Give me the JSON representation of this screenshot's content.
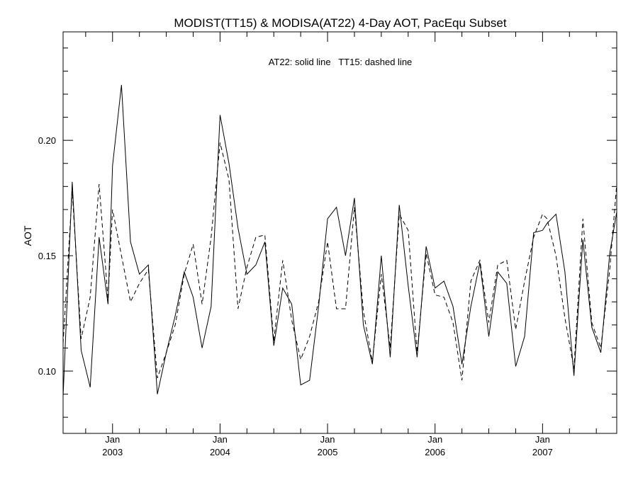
{
  "chart_data": {
    "type": "line",
    "title": "MODIST(TT15) & MODISA(AT22) 4-Day AOT, PacEqu Subset",
    "ylabel": "AOT",
    "xlabel": "",
    "annotation": "AT22: solid line   TT15: dashed line",
    "xlim": [
      2002.54,
      2007.69
    ],
    "ylim": [
      0.073,
      0.247
    ],
    "yticks": [
      {
        "value": 0.1,
        "label": "0.10"
      },
      {
        "value": 0.15,
        "label": "0.15"
      },
      {
        "value": 0.2,
        "label": "0.20"
      }
    ],
    "xticks": [
      {
        "value": 2003.0,
        "month": "Jan",
        "year": "2003"
      },
      {
        "value": 2004.0,
        "month": "Jan",
        "year": "2004"
      },
      {
        "value": 2005.0,
        "month": "Jan",
        "year": "2005"
      },
      {
        "value": 2006.0,
        "month": "Jan",
        "year": "2006"
      },
      {
        "value": 2007.0,
        "month": "Jan",
        "year": "2007"
      }
    ],
    "grid": false,
    "series": [
      {
        "name": "AT22",
        "style": "solid",
        "color": "#000000",
        "x": [
          2002.54,
          2002.625,
          2002.708,
          2002.792,
          2002.875,
          2002.958,
          2003.0,
          2003.083,
          2003.167,
          2003.25,
          2003.333,
          2003.417,
          2003.5,
          2003.583,
          2003.667,
          2003.75,
          2003.833,
          2003.917,
          2004.0,
          2004.083,
          2004.167,
          2004.25,
          2004.333,
          2004.417,
          2004.5,
          2004.583,
          2004.667,
          2004.75,
          2004.833,
          2004.917,
          2005.0,
          2005.083,
          2005.167,
          2005.25,
          2005.333,
          2005.417,
          2005.5,
          2005.583,
          2005.667,
          2005.75,
          2005.833,
          2005.917,
          2006.0,
          2006.083,
          2006.167,
          2006.25,
          2006.333,
          2006.417,
          2006.5,
          2006.583,
          2006.667,
          2006.75,
          2006.833,
          2006.917,
          2007.0,
          2007.042,
          2007.125,
          2007.208,
          2007.292,
          2007.375,
          2007.458,
          2007.542,
          2007.625,
          2007.69
        ],
        "y": [
          0.089,
          0.182,
          0.109,
          0.093,
          0.158,
          0.129,
          0.189,
          0.224,
          0.156,
          0.142,
          0.146,
          0.09,
          0.108,
          0.124,
          0.143,
          0.132,
          0.11,
          0.128,
          0.211,
          0.19,
          0.162,
          0.142,
          0.146,
          0.156,
          0.111,
          0.136,
          0.129,
          0.094,
          0.096,
          0.128,
          0.166,
          0.171,
          0.15,
          0.175,
          0.12,
          0.103,
          0.15,
          0.106,
          0.172,
          0.137,
          0.106,
          0.154,
          0.136,
          0.139,
          0.128,
          0.103,
          0.128,
          0.147,
          0.115,
          0.143,
          0.138,
          0.102,
          0.115,
          0.16,
          0.161,
          0.164,
          0.168,
          0.143,
          0.098,
          0.157,
          0.119,
          0.108,
          0.151,
          0.169
        ]
      },
      {
        "name": "TT15",
        "style": "dashed",
        "color": "#000000",
        "x": [
          2002.54,
          2002.625,
          2002.708,
          2002.792,
          2002.875,
          2002.958,
          2003.0,
          2003.083,
          2003.167,
          2003.25,
          2003.333,
          2003.417,
          2003.5,
          2003.583,
          2003.667,
          2003.75,
          2003.833,
          2003.917,
          2004.0,
          2004.083,
          2004.167,
          2004.25,
          2004.333,
          2004.417,
          2004.5,
          2004.583,
          2004.667,
          2004.75,
          2004.833,
          2004.917,
          2005.0,
          2005.083,
          2005.167,
          2005.25,
          2005.333,
          2005.417,
          2005.5,
          2005.583,
          2005.667,
          2005.75,
          2005.833,
          2005.917,
          2006.0,
          2006.083,
          2006.167,
          2006.25,
          2006.333,
          2006.417,
          2006.5,
          2006.583,
          2006.667,
          2006.75,
          2006.833,
          2006.917,
          2007.0,
          2007.042,
          2007.125,
          2007.208,
          2007.292,
          2007.375,
          2007.458,
          2007.542,
          2007.625,
          2007.69
        ],
        "y": [
          0.112,
          0.178,
          0.114,
          0.132,
          0.181,
          0.131,
          0.17,
          0.15,
          0.13,
          0.138,
          0.144,
          0.097,
          0.108,
          0.12,
          0.142,
          0.155,
          0.129,
          0.158,
          0.199,
          0.183,
          0.127,
          0.145,
          0.158,
          0.159,
          0.113,
          0.148,
          0.122,
          0.105,
          0.115,
          0.13,
          0.156,
          0.127,
          0.127,
          0.171,
          0.126,
          0.104,
          0.142,
          0.11,
          0.168,
          0.161,
          0.108,
          0.151,
          0.133,
          0.132,
          0.121,
          0.096,
          0.139,
          0.148,
          0.121,
          0.146,
          0.148,
          0.118,
          0.139,
          0.158,
          0.168,
          0.166,
          0.15,
          0.123,
          0.101,
          0.166,
          0.121,
          0.11,
          0.144,
          0.181
        ]
      }
    ]
  }
}
